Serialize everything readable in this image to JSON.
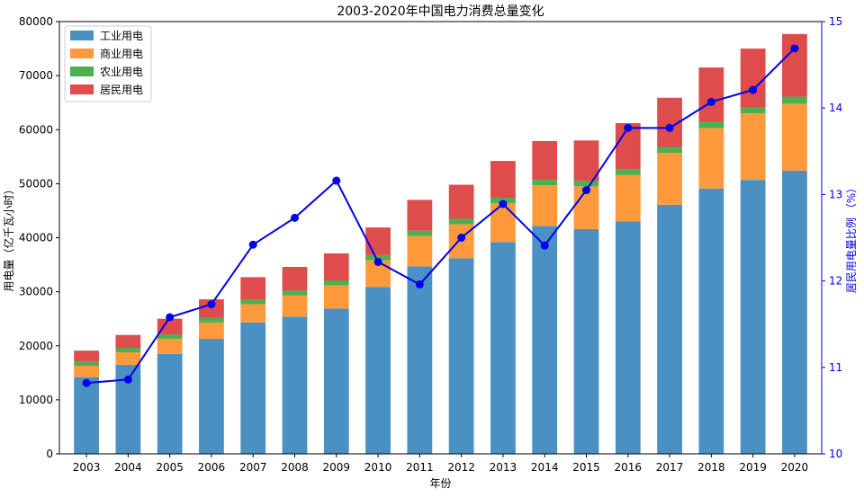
{
  "chart_data": {
    "type": "bar",
    "title": "2003-2020年中国电力消费总量变化",
    "xlabel": "年份",
    "ylabel": "用电量（亿千瓦小时）",
    "y2label": "居民用电量比例 （%）",
    "categories": [
      "2003",
      "2004",
      "2005",
      "2006",
      "2007",
      "2008",
      "2009",
      "2010",
      "2011",
      "2012",
      "2013",
      "2014",
      "2015",
      "2016",
      "2017",
      "2018",
      "2019",
      "2020"
    ],
    "stacked": true,
    "ylim": [
      0,
      80000
    ],
    "yticks": [
      0,
      10000,
      20000,
      30000,
      40000,
      50000,
      60000,
      70000,
      80000
    ],
    "y2lim": [
      10,
      15
    ],
    "y2ticks": [
      10,
      11,
      12,
      13,
      14,
      15
    ],
    "legend_position": "upper-left",
    "grid": false,
    "series": [
      {
        "name": "工业用电",
        "color": "#4a90c2",
        "values": [
          14200,
          16500,
          18500,
          21300,
          24300,
          25400,
          26900,
          30900,
          34700,
          36200,
          39200,
          42200,
          41600,
          43000,
          46100,
          49100,
          50700,
          52400
        ]
      },
      {
        "name": "商业用电",
        "color": "#ff9a3c",
        "values": [
          2100,
          2300,
          2800,
          3000,
          3400,
          3900,
          4300,
          4900,
          5600,
          6300,
          7200,
          7500,
          7900,
          8600,
          9600,
          11200,
          12300,
          12400
        ]
      },
      {
        "name": "农业用电",
        "color": "#4caf50",
        "values": [
          800,
          800,
          800,
          900,
          900,
          900,
          900,
          1000,
          1000,
          1000,
          1000,
          1000,
          1000,
          1100,
          1100,
          1100,
          1200,
          1300
        ]
      },
      {
        "name": "居民用电",
        "color": "#de4c4c",
        "values": [
          2000,
          2400,
          2900,
          3400,
          4100,
          4400,
          5000,
          5100,
          5700,
          6300,
          6800,
          7200,
          7500,
          8500,
          9100,
          10100,
          10800,
          11600
        ]
      }
    ],
    "line_series": {
      "name": "居民用电量比例",
      "axis": "right",
      "color": "#0000ee",
      "values": [
        10.82,
        10.86,
        11.58,
        11.73,
        12.42,
        12.73,
        13.16,
        12.22,
        11.96,
        12.5,
        12.89,
        12.41,
        13.05,
        13.77,
        13.77,
        14.07,
        14.21,
        14.69
      ]
    }
  }
}
